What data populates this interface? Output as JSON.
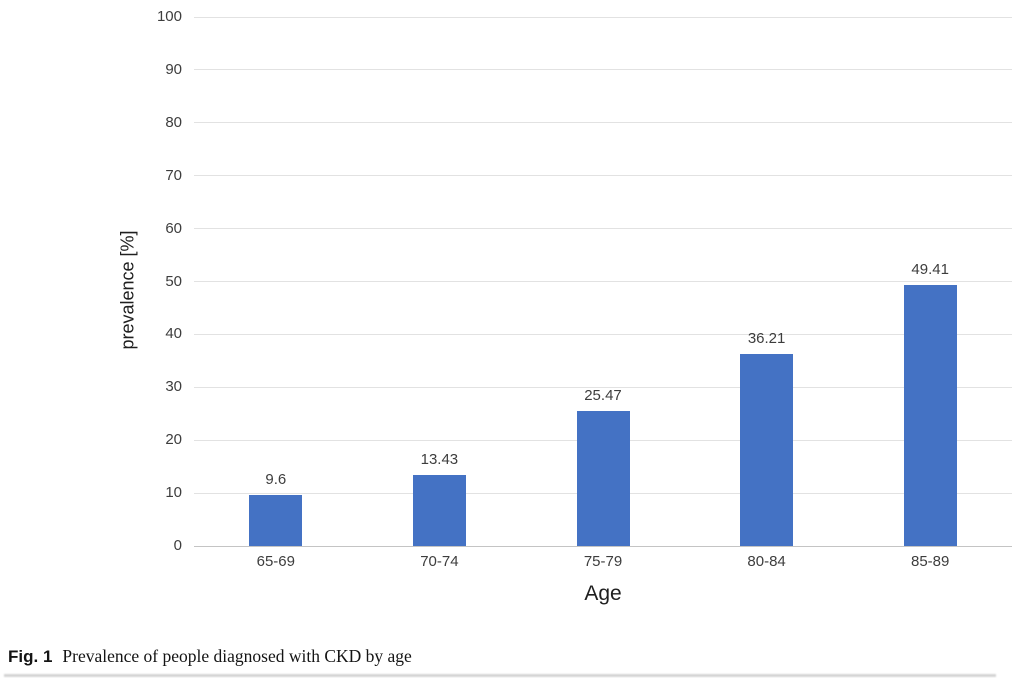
{
  "figure": {
    "caption_label": "Fig. 1",
    "caption_text": "Prevalence of people diagnosed with CKD by age"
  },
  "chart_data": {
    "type": "bar",
    "title": "",
    "categories": [
      "65-69",
      "70-74",
      "75-79",
      "80-84",
      "85-89"
    ],
    "values": [
      9.6,
      13.43,
      25.47,
      36.21,
      49.41
    ],
    "value_labels": [
      "9.6",
      "13.43",
      "25.47",
      "36.21",
      "49.41"
    ],
    "xlabel": "Age",
    "ylabel": "prevalence [%]",
    "ylim": [
      0,
      100
    ],
    "ytick_step": 10,
    "grid": "horizontal",
    "legend": "none",
    "bar_color": "#4472C4",
    "gridline_color": "#e2e2e2",
    "axis_line_color": "#c4c4c4",
    "tick_label_color": "#3d3d3d"
  }
}
